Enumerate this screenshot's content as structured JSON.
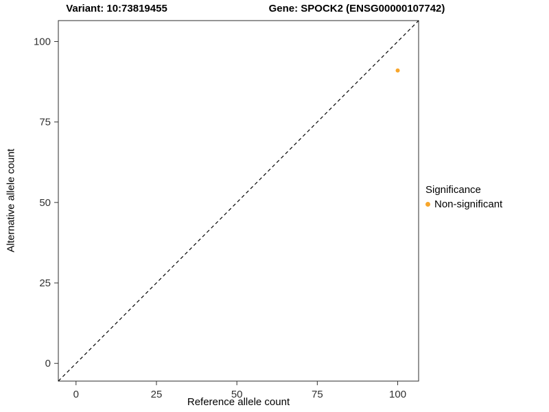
{
  "chart_data": {
    "type": "scatter",
    "title_left": "Variant: 10:73819455",
    "title_right": "Gene: SPOCK2 (ENSG00000107742)",
    "xlabel": "Reference allele count",
    "ylabel": "Alternative allele count",
    "xlim": [
      -5.5,
      106.5
    ],
    "ylim": [
      -5.5,
      106.5
    ],
    "xticks": [
      0,
      25,
      50,
      75,
      100
    ],
    "yticks": [
      0,
      25,
      50,
      75,
      100
    ],
    "grid": false,
    "panel_border_color": "#2b2b2b",
    "axis_text_color": "#303030",
    "identity_line": {
      "type": "abline",
      "slope": 1,
      "intercept": 0,
      "style": "dashed",
      "color": "#000000"
    },
    "series": [
      {
        "name": "Non-significant",
        "color": "#F8A62B",
        "points": [
          {
            "x": 100,
            "y": 91
          }
        ]
      }
    ],
    "legend": {
      "title": "Significance",
      "position": "right",
      "entries": [
        {
          "label": "Non-significant",
          "color": "#F8A62B"
        }
      ]
    }
  }
}
